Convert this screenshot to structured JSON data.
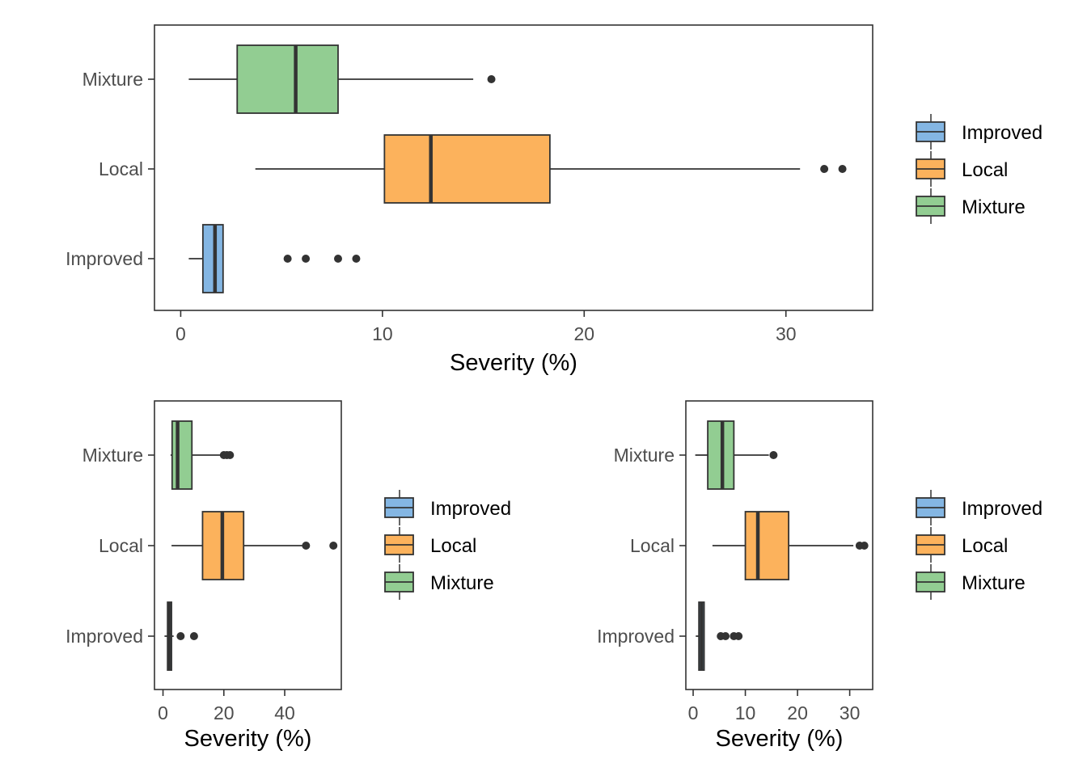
{
  "colors": {
    "Improved": "#84B6E3",
    "Local": "#FCB25C",
    "Mixture": "#92CD92",
    "stroke": "#333333",
    "frame": "#333333"
  },
  "chart_data": [
    {
      "type": "boxplot",
      "orientation": "horizontal",
      "xlabel": "Severity (%)",
      "ylabel": "",
      "xlim": [
        -1.3,
        34.3
      ],
      "xticks": [
        0,
        10,
        20,
        30
      ],
      "legend": {
        "position": "right",
        "entries": [
          "Improved",
          "Local",
          "Mixture"
        ]
      },
      "categories": [
        "Mixture",
        "Local",
        "Improved"
      ],
      "series": [
        {
          "group": "Mixture",
          "whisker_low": 0.4,
          "q1": 2.8,
          "median": 5.7,
          "q3": 7.8,
          "whisker_high": 14.5,
          "outliers": [
            15.4
          ]
        },
        {
          "group": "Local",
          "whisker_low": 3.7,
          "q1": 10.1,
          "median": 12.4,
          "q3": 18.3,
          "whisker_high": 30.7,
          "outliers": [
            31.9,
            32.8
          ]
        },
        {
          "group": "Improved",
          "whisker_low": 0.4,
          "q1": 1.1,
          "median": 1.7,
          "q3": 2.1,
          "whisker_high": 2.1,
          "outliers": [
            5.3,
            6.2,
            7.8,
            8.7
          ]
        }
      ]
    },
    {
      "type": "boxplot",
      "orientation": "horizontal",
      "xlabel": "Severity (%)",
      "ylabel": "",
      "xlim": [
        -2.8,
        58.6
      ],
      "xticks": [
        0,
        20,
        40
      ],
      "legend": {
        "position": "right",
        "entries": [
          "Improved",
          "Local",
          "Mixture"
        ]
      },
      "categories": [
        "Mixture",
        "Local",
        "Improved"
      ],
      "series": [
        {
          "group": "Mixture",
          "whisker_low": 2.5,
          "q1": 3.0,
          "median": 4.8,
          "q3": 9.5,
          "whisker_high": 19.0,
          "outliers": [
            20.0,
            21.0,
            22.0
          ]
        },
        {
          "group": "Local",
          "whisker_low": 2.8,
          "q1": 13.0,
          "median": 19.5,
          "q3": 26.5,
          "whisker_high": 46.5,
          "outliers": [
            47.0,
            56.0
          ]
        },
        {
          "group": "Improved",
          "whisker_low": 0.5,
          "q1": 1.5,
          "median": 2.0,
          "q3": 2.8,
          "whisker_high": 3.5,
          "outliers": [
            5.8,
            10.2
          ]
        }
      ]
    },
    {
      "type": "boxplot",
      "orientation": "horizontal",
      "xlabel": "Severity (%)",
      "ylabel": "",
      "xlim": [
        -1.4,
        34.4
      ],
      "xticks": [
        0,
        10,
        20,
        30
      ],
      "legend": {
        "position": "right",
        "entries": [
          "Improved",
          "Local",
          "Mixture"
        ]
      },
      "categories": [
        "Mixture",
        "Local",
        "Improved"
      ],
      "series": [
        {
          "group": "Mixture",
          "whisker_low": 0.4,
          "q1": 2.8,
          "median": 5.6,
          "q3": 7.8,
          "whisker_high": 14.5,
          "outliers": [
            15.4
          ]
        },
        {
          "group": "Local",
          "whisker_low": 3.7,
          "q1": 10.0,
          "median": 12.4,
          "q3": 18.3,
          "whisker_high": 30.7,
          "outliers": [
            31.9,
            32.8
          ]
        },
        {
          "group": "Improved",
          "whisker_low": 0.5,
          "q1": 1.1,
          "median": 1.6,
          "q3": 2.1,
          "whisker_high": 2.1,
          "outliers": [
            5.3,
            6.2,
            7.8,
            8.7
          ]
        }
      ]
    }
  ]
}
